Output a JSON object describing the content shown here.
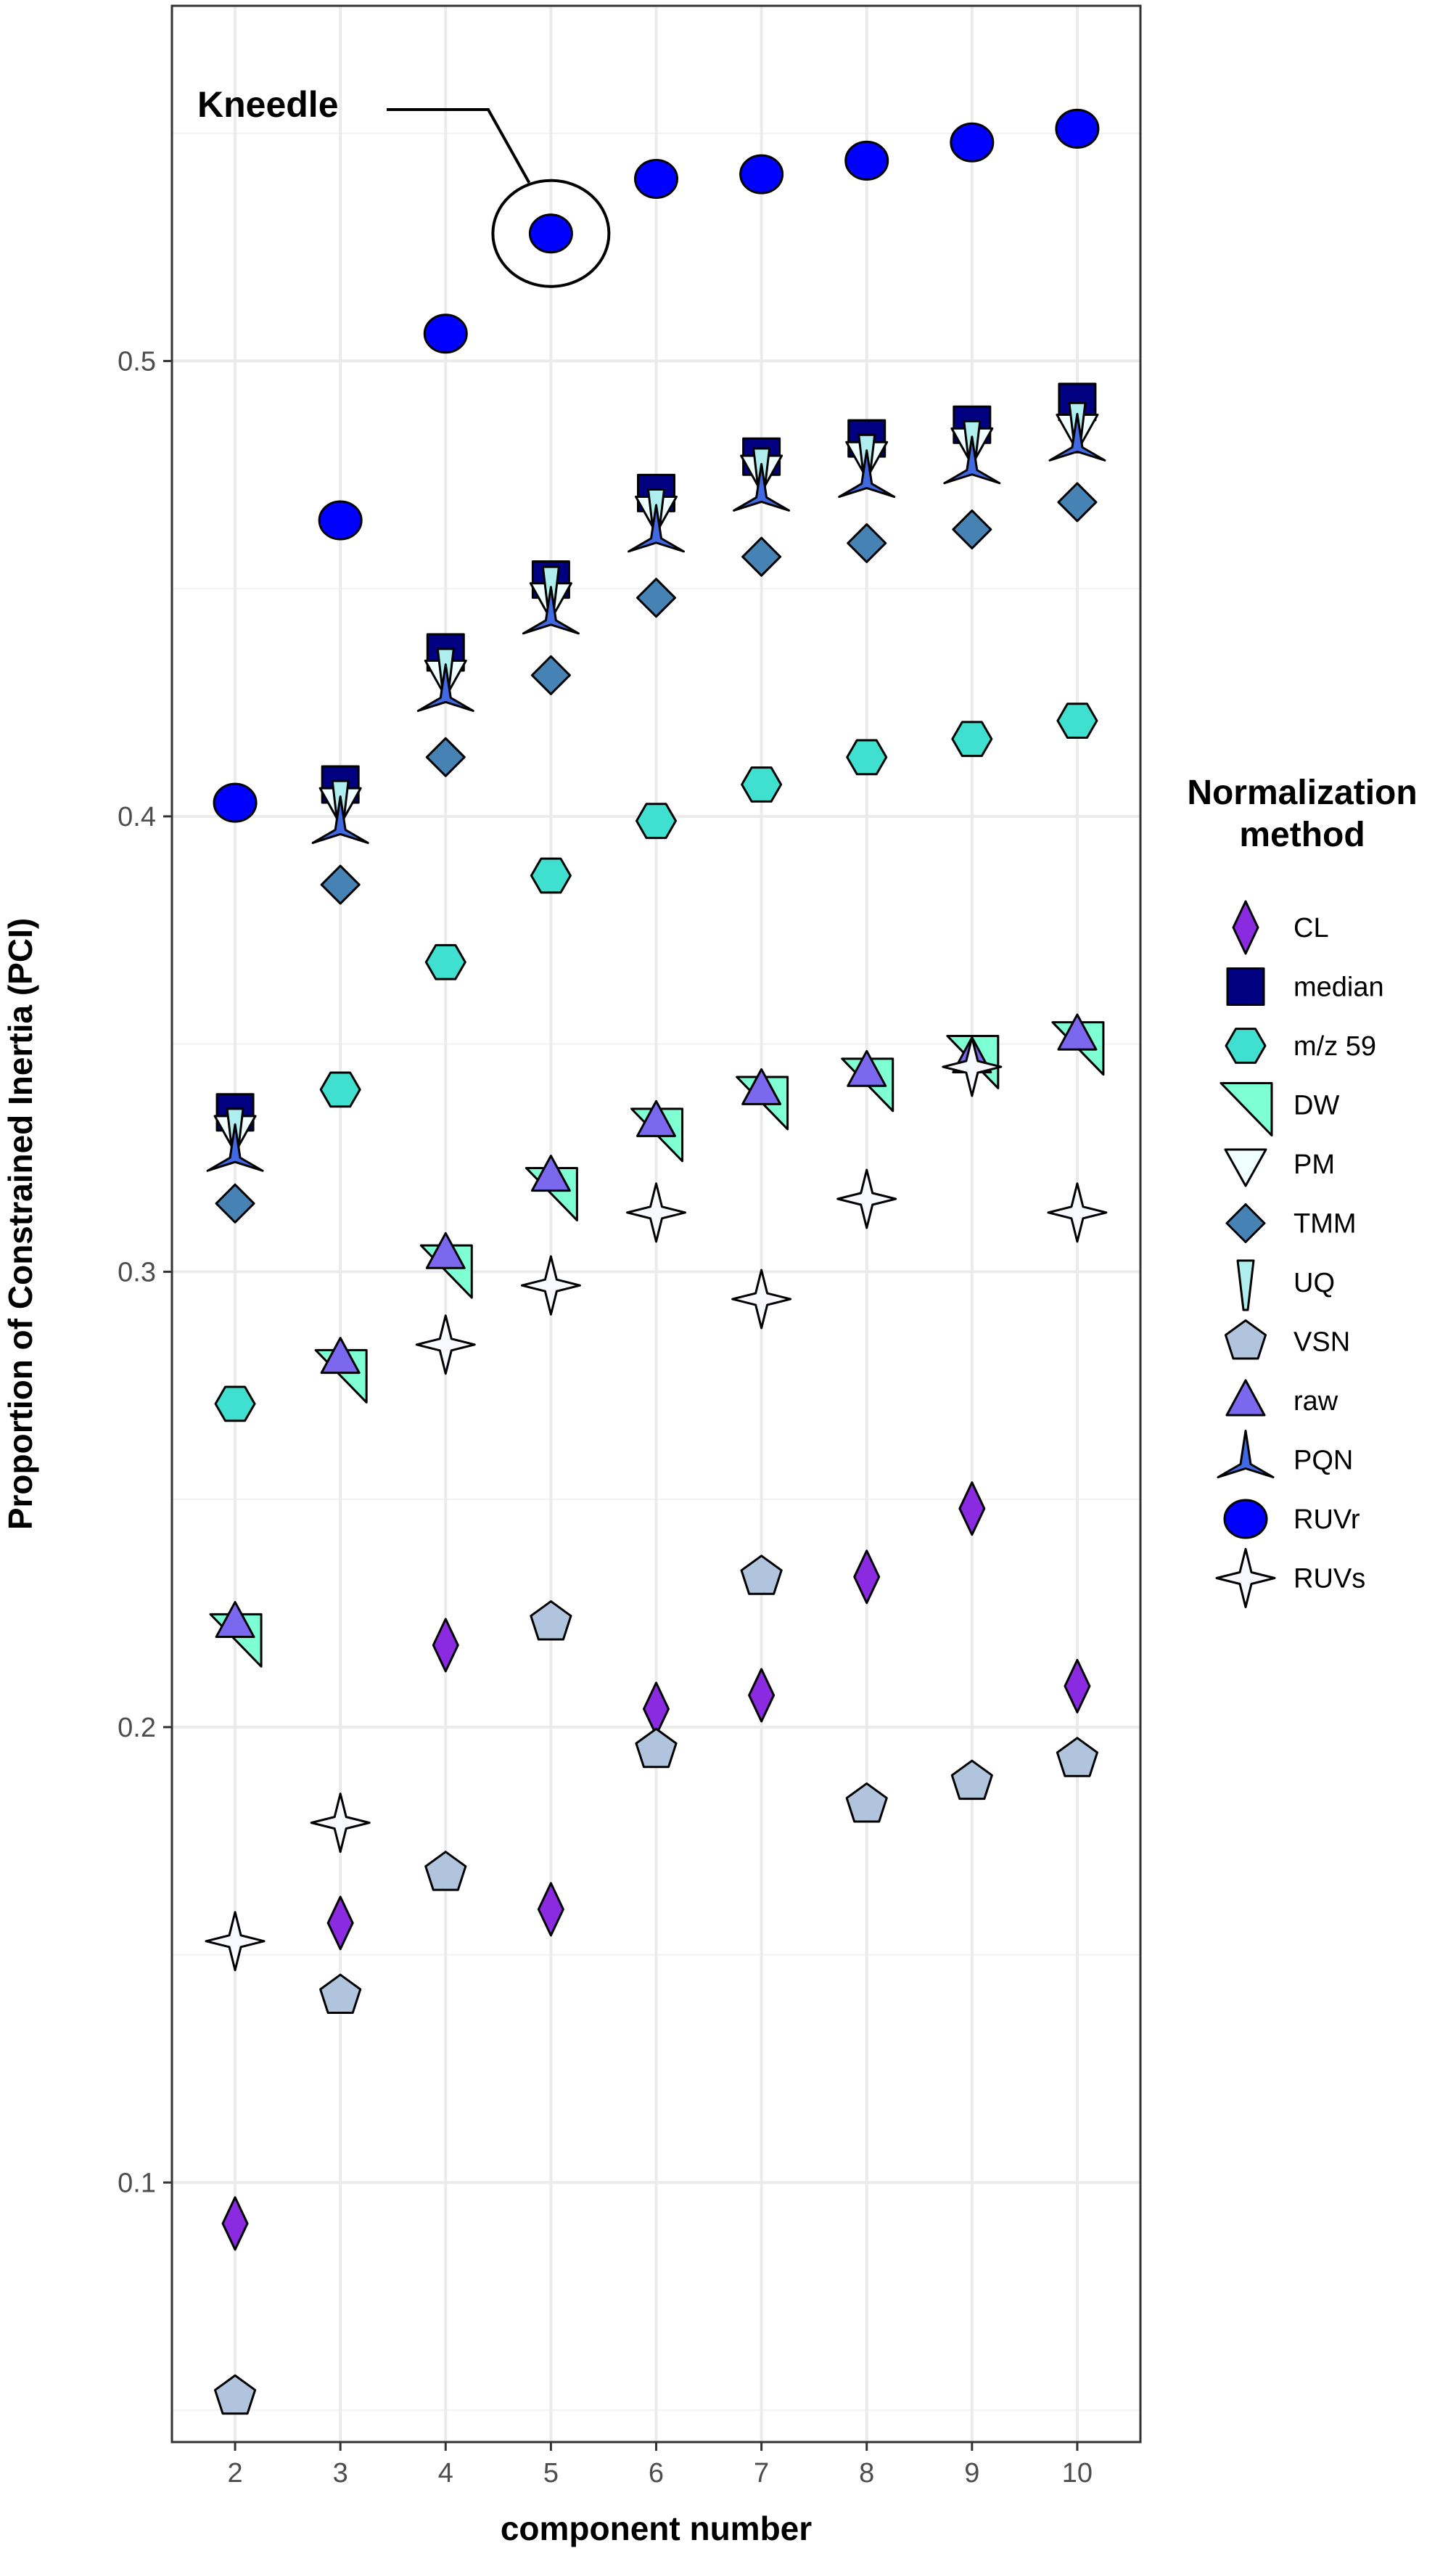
{
  "chart_data": {
    "type": "scatter",
    "title": "",
    "xlabel": "component number",
    "ylabel": "Proportion of Constrained Inertia (PCI)",
    "x": [
      2,
      3,
      4,
      5,
      6,
      7,
      8,
      9,
      10
    ],
    "xlim": [
      1.4,
      10.6
    ],
    "ylim": [
      0.043,
      0.578
    ],
    "x_ticks": [
      "2",
      "3",
      "4",
      "5",
      "6",
      "7",
      "8",
      "9",
      "10"
    ],
    "y_ticks": [
      "0.1",
      "0.2",
      "0.3",
      "0.4",
      "0.5"
    ],
    "y_tick_values": [
      0.1,
      0.2,
      0.3,
      0.4,
      0.5
    ],
    "grid": true,
    "legend_position": "right",
    "legend_title": "Normalization method",
    "legend_title_lines": [
      "Normalization",
      "method"
    ],
    "annotation": {
      "text": "Kneedle",
      "x": 5,
      "series": "RUVr"
    },
    "series": [
      {
        "name": "CL",
        "shape": "diamond",
        "color": "#8a2be2",
        "values": [
          0.091,
          0.157,
          0.218,
          0.16,
          0.204,
          0.207,
          0.233,
          0.248,
          0.209
        ]
      },
      {
        "name": "median",
        "shape": "square",
        "color": "#000080",
        "values": [
          0.335,
          0.407,
          0.436,
          0.452,
          0.471,
          0.479,
          0.483,
          0.486,
          0.491
        ]
      },
      {
        "name": "m/z 59",
        "shape": "hexagon",
        "color": "#40e0d0",
        "values": [
          0.271,
          0.34,
          0.368,
          0.387,
          0.399,
          0.407,
          0.413,
          0.417,
          0.421
        ]
      },
      {
        "name": "DW",
        "shape": "right-triangle",
        "color": "#7fffd4",
        "values": [
          0.22,
          0.278,
          0.301,
          0.318,
          0.331,
          0.338,
          0.342,
          0.347,
          0.35
        ]
      },
      {
        "name": "PM",
        "shape": "triangle-down",
        "color": "#f0ffff",
        "values": [
          0.331,
          0.403,
          0.431,
          0.448,
          0.467,
          0.476,
          0.479,
          0.482,
          0.485
        ]
      },
      {
        "name": "TMM",
        "shape": "diamond-wide",
        "color": "#4682b4",
        "values": [
          0.315,
          0.385,
          0.413,
          0.431,
          0.448,
          0.457,
          0.46,
          0.463,
          0.469
        ]
      },
      {
        "name": "UQ",
        "shape": "spike",
        "color": "#afeeee",
        "values": [
          0.331,
          0.403,
          0.432,
          0.45,
          0.467,
          0.476,
          0.479,
          0.482,
          0.486
        ]
      },
      {
        "name": "VSN",
        "shape": "pentagon",
        "color": "#b0c4de",
        "values": [
          0.053,
          0.141,
          0.168,
          0.223,
          0.195,
          0.233,
          0.183,
          0.188,
          0.193
        ]
      },
      {
        "name": "raw",
        "shape": "triangle-up",
        "color": "#7b68ee",
        "values": [
          0.223,
          0.281,
          0.304,
          0.321,
          0.333,
          0.34,
          0.344,
          0.347,
          0.352
        ]
      },
      {
        "name": "PQN",
        "shape": "star3",
        "color": "#4169e1",
        "values": [
          0.326,
          0.398,
          0.427,
          0.444,
          0.462,
          0.471,
          0.474,
          0.477,
          0.482
        ]
      },
      {
        "name": "RUVr",
        "shape": "circle",
        "color": "#0000ff",
        "values": [
          0.403,
          0.465,
          0.506,
          0.528,
          0.54,
          0.541,
          0.544,
          0.548,
          0.551
        ]
      },
      {
        "name": "RUVs",
        "shape": "star4",
        "color": "#f8f8ff",
        "values": [
          0.153,
          0.179,
          0.284,
          0.297,
          0.313,
          0.294,
          0.316,
          0.345,
          0.313
        ]
      }
    ]
  }
}
